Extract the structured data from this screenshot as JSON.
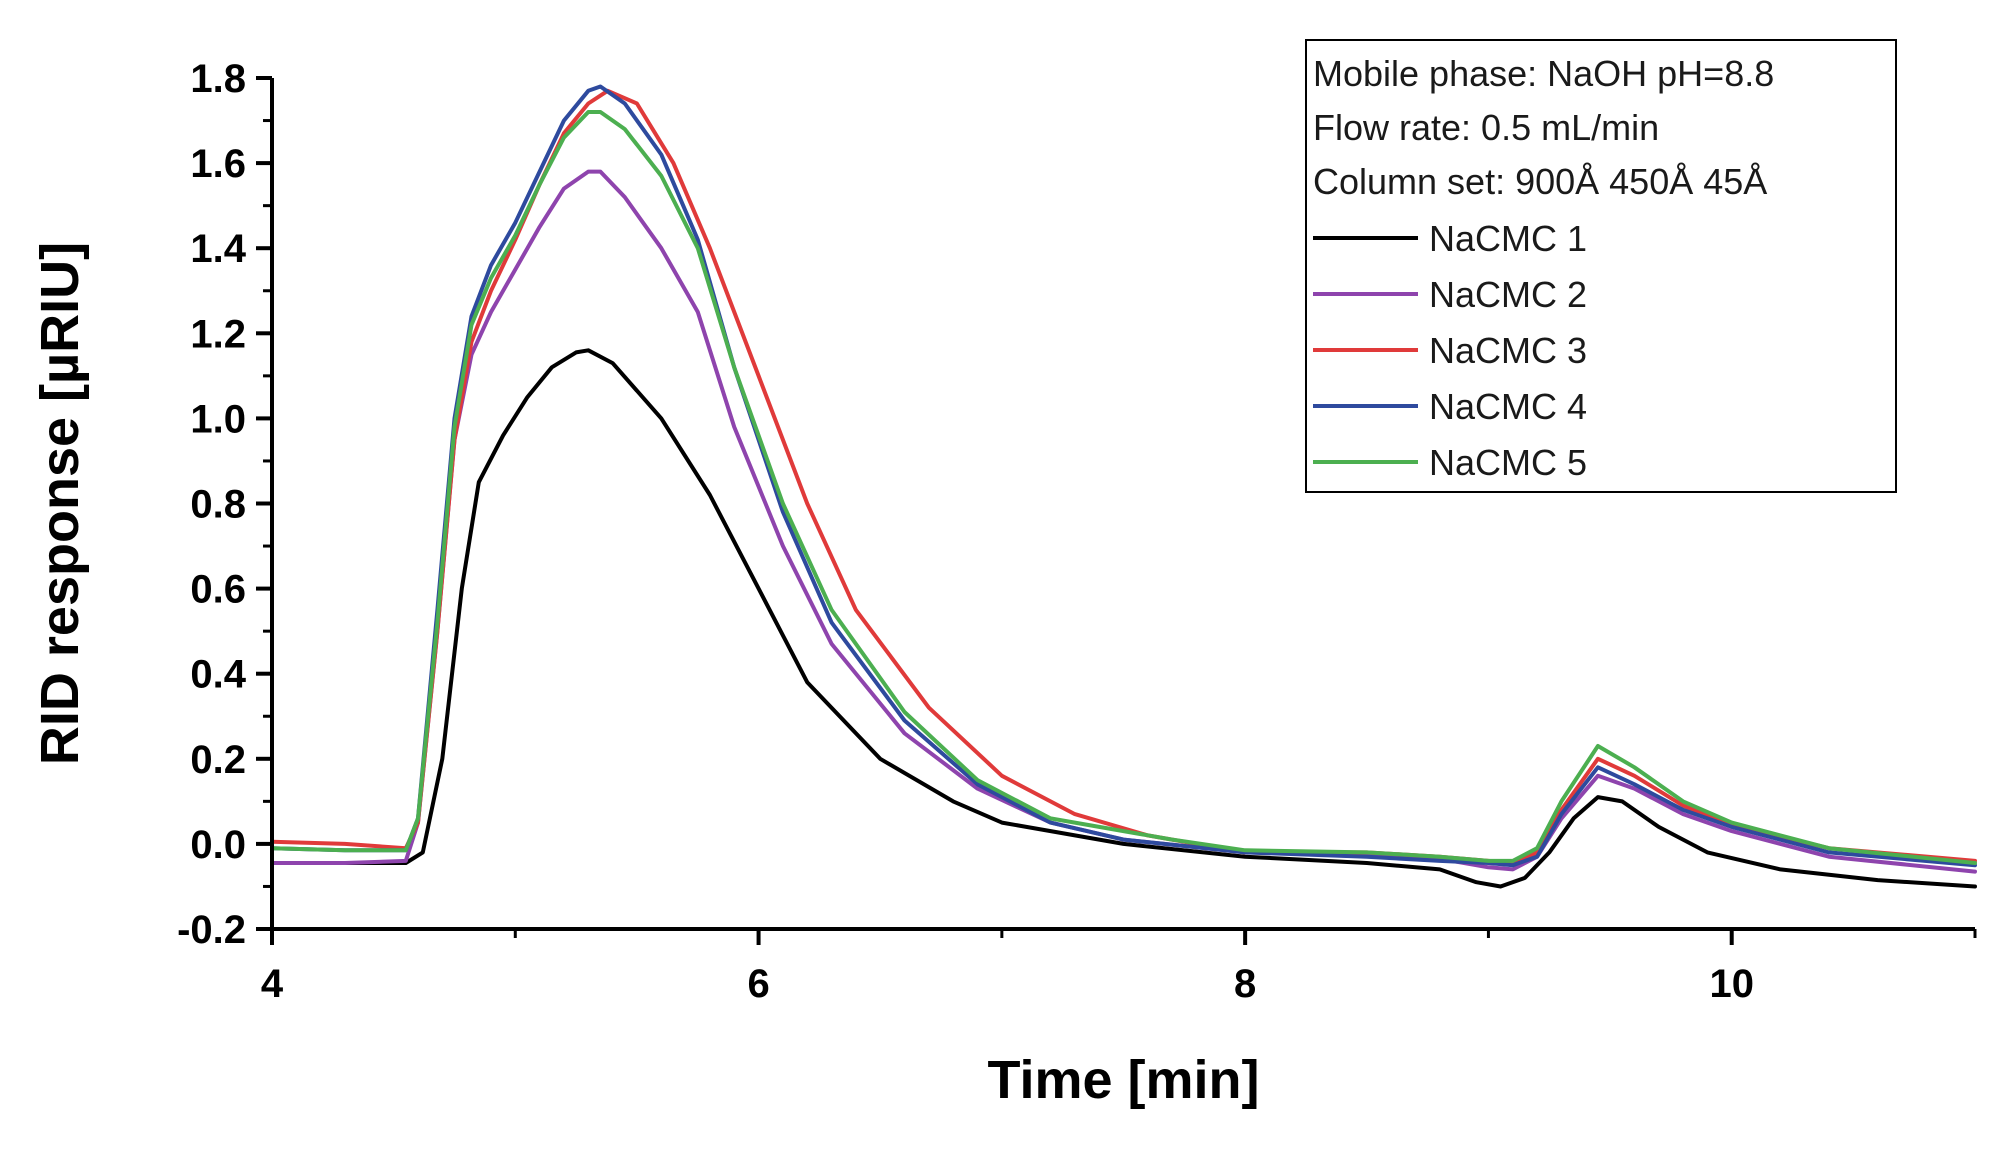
{
  "chart_data": {
    "type": "line",
    "xlabel": "Time [min]",
    "ylabel": "RID response [µRIU]",
    "xlim": [
      4,
      11
    ],
    "ylim": [
      -0.2,
      1.8
    ],
    "x_ticks": [
      "4",
      "6",
      "8",
      "10"
    ],
    "y_ticks": [
      "-0.2",
      "0.0",
      "0.2",
      "0.4",
      "0.6",
      "0.8",
      "1.0",
      "1.2",
      "1.4",
      "1.6",
      "1.8"
    ],
    "legend_position": "top-right",
    "annotations": [
      "Mobile phase: NaOH pH=8.8",
      "Flow rate: 0.5 mL/min",
      "Column set: 900Å 450Å 45Å"
    ],
    "series": [
      {
        "name": "NaCMC 1",
        "color": "#000000",
        "x": [
          4.0,
          4.3,
          4.55,
          4.62,
          4.7,
          4.78,
          4.85,
          4.95,
          5.05,
          5.15,
          5.25,
          5.3,
          5.4,
          5.6,
          5.8,
          6.0,
          6.2,
          6.5,
          6.8,
          7.0,
          7.5,
          8.0,
          8.5,
          8.8,
          8.95,
          9.05,
          9.15,
          9.25,
          9.35,
          9.45,
          9.55,
          9.7,
          9.9,
          10.2,
          10.6,
          11.0
        ],
        "y": [
          -0.045,
          -0.045,
          -0.045,
          -0.02,
          0.2,
          0.6,
          0.85,
          0.96,
          1.05,
          1.12,
          1.155,
          1.16,
          1.13,
          1.0,
          0.82,
          0.6,
          0.38,
          0.2,
          0.1,
          0.05,
          0.0,
          -0.03,
          -0.045,
          -0.06,
          -0.09,
          -0.1,
          -0.08,
          -0.02,
          0.06,
          0.11,
          0.1,
          0.04,
          -0.02,
          -0.06,
          -0.085,
          -0.1
        ]
      },
      {
        "name": "NaCMC 2",
        "color": "#8e44ad",
        "x": [
          4.0,
          4.3,
          4.55,
          4.6,
          4.68,
          4.75,
          4.82,
          4.9,
          5.0,
          5.1,
          5.2,
          5.3,
          5.35,
          5.45,
          5.6,
          5.75,
          5.9,
          6.1,
          6.3,
          6.6,
          6.9,
          7.2,
          7.5,
          8.0,
          8.5,
          8.8,
          9.0,
          9.1,
          9.2,
          9.3,
          9.45,
          9.6,
          9.8,
          10.0,
          10.4,
          11.0
        ],
        "y": [
          -0.045,
          -0.045,
          -0.04,
          0.05,
          0.5,
          0.95,
          1.15,
          1.25,
          1.35,
          1.45,
          1.54,
          1.58,
          1.58,
          1.52,
          1.4,
          1.25,
          0.98,
          0.7,
          0.47,
          0.26,
          0.13,
          0.05,
          0.01,
          -0.02,
          -0.025,
          -0.035,
          -0.055,
          -0.06,
          -0.03,
          0.06,
          0.16,
          0.13,
          0.07,
          0.03,
          -0.03,
          -0.065
        ]
      },
      {
        "name": "NaCMC 3",
        "color": "#e03a3a",
        "x": [
          4.0,
          4.3,
          4.55,
          4.6,
          4.68,
          4.75,
          4.82,
          4.9,
          5.0,
          5.1,
          5.2,
          5.3,
          5.38,
          5.5,
          5.65,
          5.8,
          6.0,
          6.2,
          6.4,
          6.7,
          7.0,
          7.3,
          7.6,
          8.0,
          8.5,
          8.8,
          9.0,
          9.1,
          9.2,
          9.3,
          9.45,
          9.6,
          9.8,
          10.0,
          10.4,
          11.0
        ],
        "y": [
          0.005,
          0.0,
          -0.01,
          0.05,
          0.5,
          0.95,
          1.18,
          1.3,
          1.42,
          1.55,
          1.67,
          1.74,
          1.77,
          1.74,
          1.6,
          1.4,
          1.1,
          0.8,
          0.55,
          0.32,
          0.16,
          0.07,
          0.02,
          -0.02,
          -0.02,
          -0.03,
          -0.04,
          -0.045,
          -0.02,
          0.08,
          0.2,
          0.16,
          0.09,
          0.045,
          -0.01,
          -0.04
        ]
      },
      {
        "name": "NaCMC 4",
        "color": "#2e4a9e",
        "x": [
          4.0,
          4.3,
          4.55,
          4.6,
          4.68,
          4.75,
          4.82,
          4.9,
          5.0,
          5.1,
          5.2,
          5.3,
          5.35,
          5.45,
          5.6,
          5.75,
          5.9,
          6.1,
          6.3,
          6.6,
          6.9,
          7.2,
          7.5,
          8.0,
          8.5,
          8.8,
          9.0,
          9.1,
          9.2,
          9.3,
          9.45,
          9.6,
          9.8,
          10.0,
          10.4,
          11.0
        ],
        "y": [
          -0.01,
          -0.015,
          -0.015,
          0.06,
          0.55,
          1.0,
          1.24,
          1.36,
          1.46,
          1.58,
          1.7,
          1.77,
          1.78,
          1.74,
          1.62,
          1.42,
          1.12,
          0.78,
          0.52,
          0.29,
          0.14,
          0.05,
          0.01,
          -0.02,
          -0.03,
          -0.04,
          -0.045,
          -0.05,
          -0.03,
          0.07,
          0.18,
          0.14,
          0.08,
          0.04,
          -0.02,
          -0.05
        ]
      },
      {
        "name": "NaCMC 5",
        "color": "#4caf50",
        "x": [
          4.0,
          4.3,
          4.55,
          4.6,
          4.68,
          4.75,
          4.82,
          4.9,
          5.0,
          5.1,
          5.2,
          5.3,
          5.35,
          5.45,
          5.6,
          5.75,
          5.9,
          6.1,
          6.3,
          6.6,
          6.9,
          7.2,
          7.5,
          7.7,
          8.0,
          8.5,
          8.8,
          9.0,
          9.1,
          9.2,
          9.3,
          9.45,
          9.6,
          9.8,
          10.0,
          10.4,
          11.0
        ],
        "y": [
          -0.01,
          -0.015,
          -0.015,
          0.06,
          0.52,
          0.98,
          1.22,
          1.33,
          1.43,
          1.55,
          1.66,
          1.72,
          1.72,
          1.68,
          1.57,
          1.4,
          1.12,
          0.8,
          0.55,
          0.31,
          0.15,
          0.06,
          0.03,
          0.01,
          -0.015,
          -0.02,
          -0.03,
          -0.04,
          -0.04,
          -0.01,
          0.1,
          0.23,
          0.18,
          0.1,
          0.05,
          -0.01,
          -0.045
        ]
      }
    ]
  }
}
